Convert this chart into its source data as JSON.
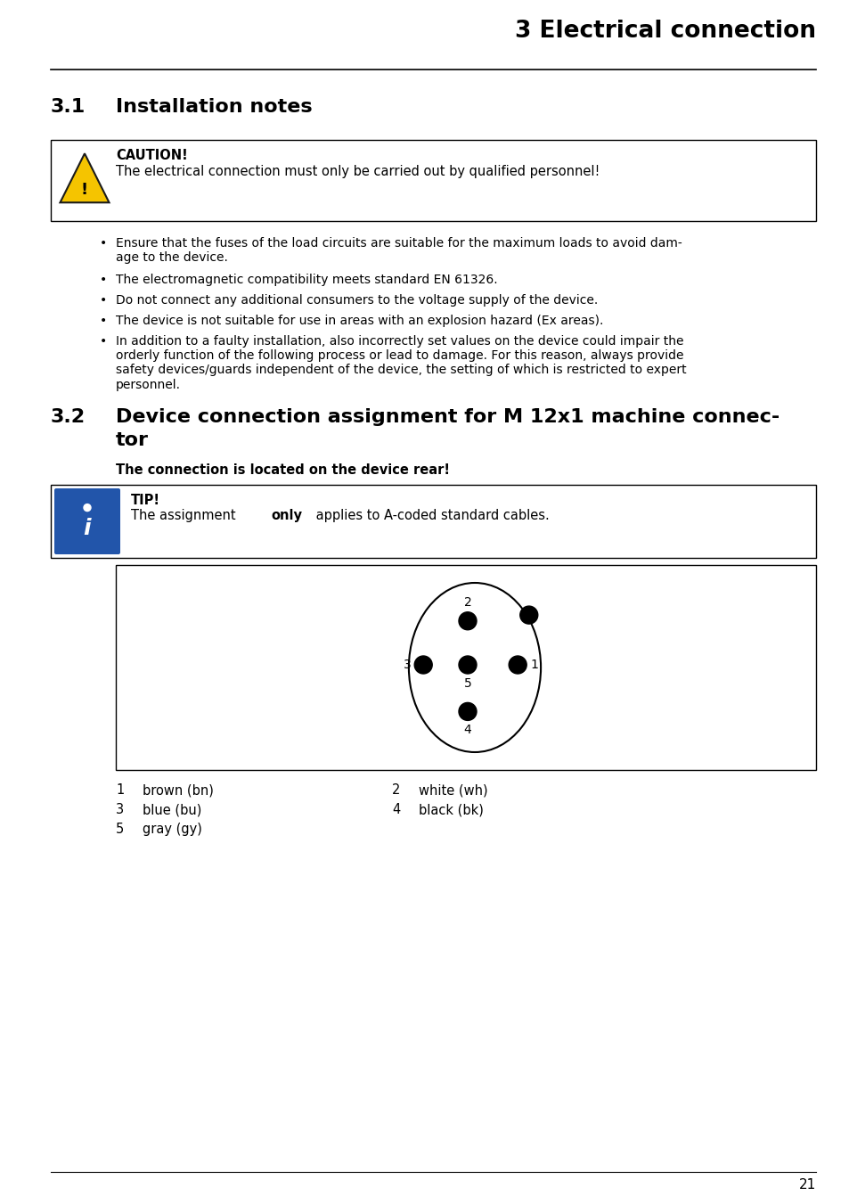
{
  "bg_color": "#ffffff",
  "page_number": "21",
  "header_title": "3 Electrical connection",
  "section1_num": "3.1",
  "section1_title": "Installation notes",
  "caution_title": "CAUTION!",
  "caution_text": "The electrical connection must only be carried out by qualified personnel!",
  "bullet_points": [
    "Ensure that the fuses of the load circuits are suitable for the maximum loads to avoid dam-\nage to the device.",
    "The electromagnetic compatibility meets standard EN 61326.",
    "Do not connect any additional consumers to the voltage supply of the device.",
    "The device is not suitable for use in areas with an explosion hazard (Ex areas).",
    "In addition to a faulty installation, also incorrectly set values on the device could impair the\norderly function of the following process or lead to damage. For this reason, always provide\nsafety devices/guards independent of the device, the setting of which is restricted to expert\npersonnel."
  ],
  "section2_num": "3.2",
  "section2_line1": "Device connection assignment for M 12x1 machine connec-",
  "section2_line2": "tor",
  "connection_note": "The connection is located on the device rear!",
  "tip_title": "TIP!",
  "tip_text_before": "The assignment ",
  "tip_text_bold": "only",
  "tip_text_after": " applies to A-coded standard cables.",
  "pin_legend": [
    {
      "num": "1",
      "name": "brown (bn)",
      "col": 0
    },
    {
      "num": "2",
      "name": "white (wh)",
      "col": 1
    },
    {
      "num": "3",
      "name": "blue (bu)",
      "col": 0
    },
    {
      "num": "4",
      "name": "black (bk)",
      "col": 1
    },
    {
      "num": "5",
      "name": "gray (gy)",
      "col": 0
    }
  ]
}
